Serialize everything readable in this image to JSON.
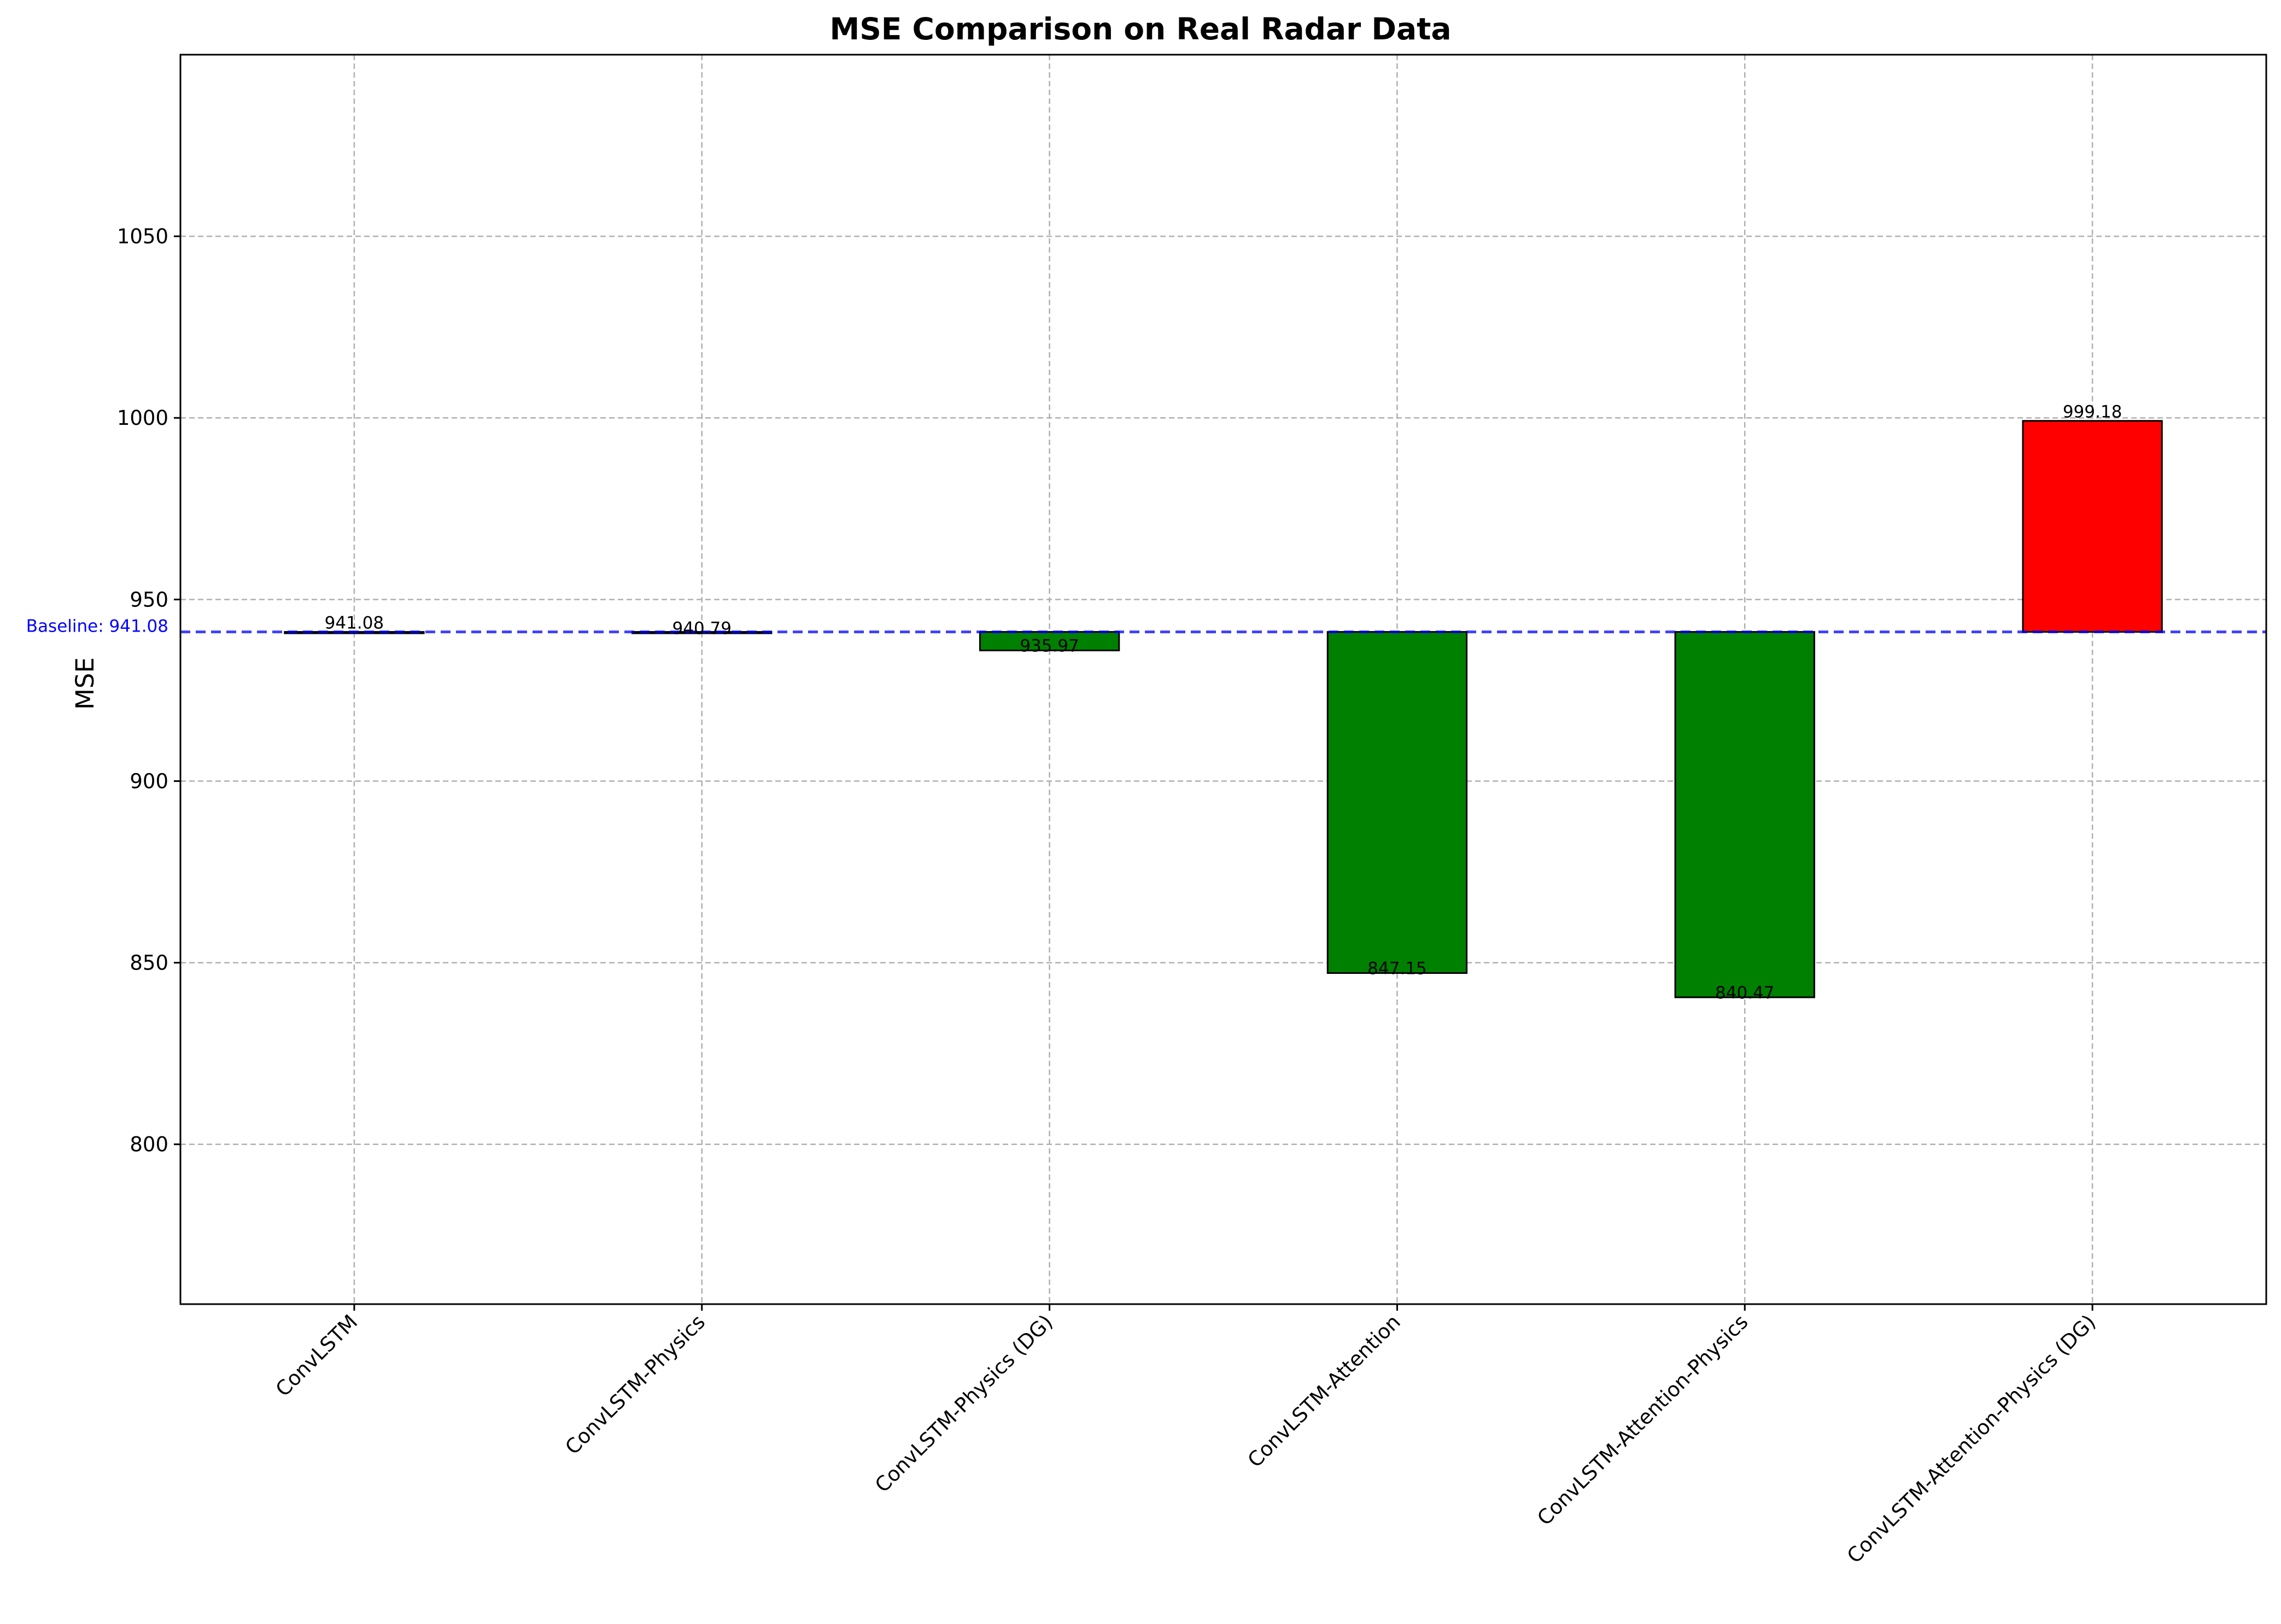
{
  "chart_data": {
    "type": "bar",
    "title": "MSE Comparison on Real Radar Data",
    "xlabel": "",
    "ylabel": "MSE",
    "categories": [
      "ConvLSTM",
      "ConvLSTM-Physics",
      "ConvLSTM-Physics (DG)",
      "ConvLSTM-Attention",
      "ConvLSTM-Attention-Physics",
      "ConvLSTM-Attention-Physics (DG)"
    ],
    "values": [
      941.08,
      940.79,
      935.97,
      847.15,
      840.47,
      999.18
    ],
    "value_labels": [
      "941.08",
      "940.79",
      "935.97",
      "847.15",
      "840.47",
      "999.18"
    ],
    "bar_base": 941.08,
    "bar_colors": [
      "#008000",
      "#008000",
      "#008000",
      "#008000",
      "#008000",
      "#ff0000"
    ],
    "baseline": {
      "value": 941.08,
      "label": "Baseline: 941.08",
      "color": "#0000ff"
    },
    "ylim": [
      756,
      1100
    ],
    "yticks": [
      800,
      850,
      900,
      950,
      1000,
      1050
    ],
    "ytick_labels": [
      "800",
      "850",
      "900",
      "950",
      "1000",
      "1050"
    ],
    "grid": true,
    "legend": "none"
  }
}
